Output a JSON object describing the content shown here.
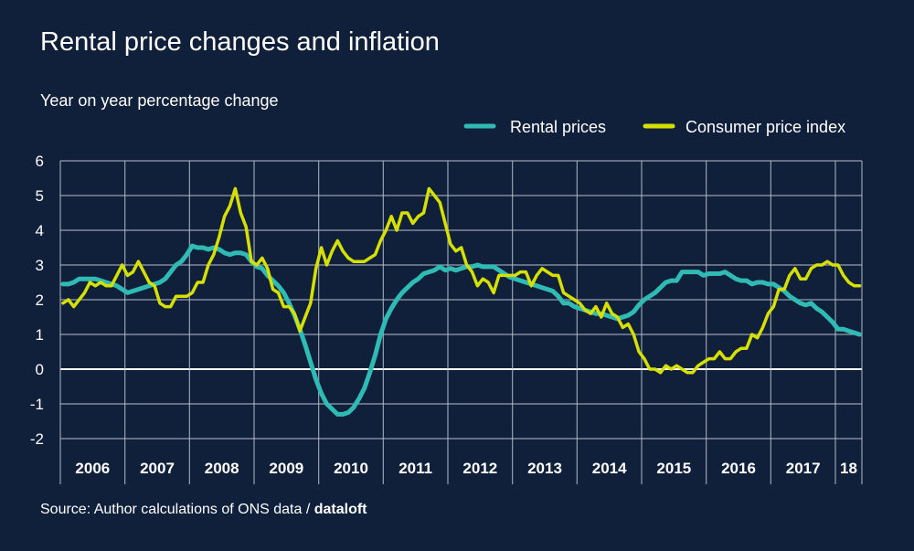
{
  "chart_data": {
    "type": "line",
    "title": "Rental price changes and inflation",
    "ylabel": "Year on year percentage change",
    "source_prefix": "Source: Author calculations of ONS data / ",
    "source_brand": "dataloft",
    "ylim": [
      -2,
      6
    ],
    "yticks": [
      -2,
      -1,
      0,
      1,
      2,
      3,
      4,
      5,
      6
    ],
    "x_start": "2006-01",
    "x_end": "2018-05",
    "year_labels": [
      "2006",
      "2007",
      "2008",
      "2009",
      "2010",
      "2011",
      "2012",
      "2013",
      "2014",
      "2015",
      "2016",
      "2017",
      "18"
    ],
    "grid": true,
    "legend_position": "top-right",
    "series": [
      {
        "name": "Rental prices",
        "color": "#2fbab4",
        "values": [
          2.45,
          2.45,
          2.5,
          2.6,
          2.6,
          2.6,
          2.6,
          2.55,
          2.5,
          2.45,
          2.4,
          2.3,
          2.2,
          2.25,
          2.3,
          2.35,
          2.4,
          2.45,
          2.5,
          2.6,
          2.8,
          3.0,
          3.1,
          3.3,
          3.55,
          3.5,
          3.5,
          3.45,
          3.5,
          3.45,
          3.35,
          3.3,
          3.35,
          3.35,
          3.3,
          3.1,
          2.95,
          2.9,
          2.7,
          2.55,
          2.4,
          2.2,
          1.9,
          1.55,
          1.15,
          0.7,
          0.2,
          -0.3,
          -0.7,
          -1.0,
          -1.15,
          -1.3,
          -1.3,
          -1.25,
          -1.1,
          -0.85,
          -0.55,
          -0.1,
          0.4,
          1.0,
          1.45,
          1.75,
          2.0,
          2.2,
          2.35,
          2.5,
          2.6,
          2.75,
          2.8,
          2.85,
          2.95,
          2.85,
          2.9,
          2.85,
          2.9,
          2.95,
          2.95,
          3.0,
          2.95,
          2.95,
          2.95,
          2.85,
          2.75,
          2.65,
          2.6,
          2.55,
          2.5,
          2.45,
          2.4,
          2.35,
          2.3,
          2.25,
          2.1,
          1.9,
          1.9,
          1.8,
          1.75,
          1.7,
          1.65,
          1.6,
          1.6,
          1.55,
          1.5,
          1.45,
          1.5,
          1.55,
          1.65,
          1.85,
          2.0,
          2.1,
          2.2,
          2.35,
          2.5,
          2.55,
          2.55,
          2.8,
          2.8,
          2.8,
          2.8,
          2.7,
          2.75,
          2.75,
          2.75,
          2.8,
          2.7,
          2.6,
          2.55,
          2.55,
          2.45,
          2.5,
          2.5,
          2.45,
          2.45,
          2.35,
          2.25,
          2.1,
          2.0,
          1.9,
          1.85,
          1.9,
          1.75,
          1.65,
          1.5,
          1.35,
          1.15,
          1.15,
          1.1,
          1.05,
          1.0
        ]
      },
      {
        "name": "Consumer price index",
        "color": "#d6e000",
        "values": [
          1.9,
          2.0,
          1.8,
          2.0,
          2.2,
          2.5,
          2.4,
          2.5,
          2.4,
          2.4,
          2.7,
          3.0,
          2.7,
          2.8,
          3.1,
          2.8,
          2.5,
          2.4,
          1.9,
          1.8,
          1.8,
          2.1,
          2.1,
          2.1,
          2.2,
          2.5,
          2.5,
          3.0,
          3.3,
          3.8,
          4.4,
          4.7,
          5.2,
          4.5,
          4.1,
          3.1,
          3.0,
          3.2,
          2.9,
          2.3,
          2.2,
          1.8,
          1.8,
          1.6,
          1.1,
          1.5,
          1.9,
          2.9,
          3.5,
          3.0,
          3.4,
          3.7,
          3.4,
          3.2,
          3.1,
          3.1,
          3.1,
          3.2,
          3.3,
          3.7,
          4.0,
          4.4,
          4.0,
          4.5,
          4.5,
          4.2,
          4.4,
          4.5,
          5.2,
          5.0,
          4.8,
          4.2,
          3.6,
          3.4,
          3.5,
          3.0,
          2.8,
          2.4,
          2.6,
          2.5,
          2.2,
          2.7,
          2.7,
          2.7,
          2.7,
          2.8,
          2.8,
          2.4,
          2.7,
          2.9,
          2.8,
          2.7,
          2.7,
          2.2,
          2.1,
          2.0,
          1.9,
          1.7,
          1.6,
          1.8,
          1.5,
          1.9,
          1.6,
          1.5,
          1.2,
          1.3,
          1.0,
          0.5,
          0.3,
          0.0,
          0.0,
          -0.1,
          0.1,
          0.0,
          0.1,
          0.0,
          -0.1,
          -0.1,
          0.1,
          0.2,
          0.3,
          0.3,
          0.5,
          0.3,
          0.3,
          0.5,
          0.6,
          0.6,
          1.0,
          0.9,
          1.2,
          1.6,
          1.8,
          2.3,
          2.3,
          2.7,
          2.9,
          2.6,
          2.6,
          2.9,
          3.0,
          3.0,
          3.1,
          3.0,
          3.0,
          2.7,
          2.5,
          2.4,
          2.4
        ]
      }
    ]
  }
}
